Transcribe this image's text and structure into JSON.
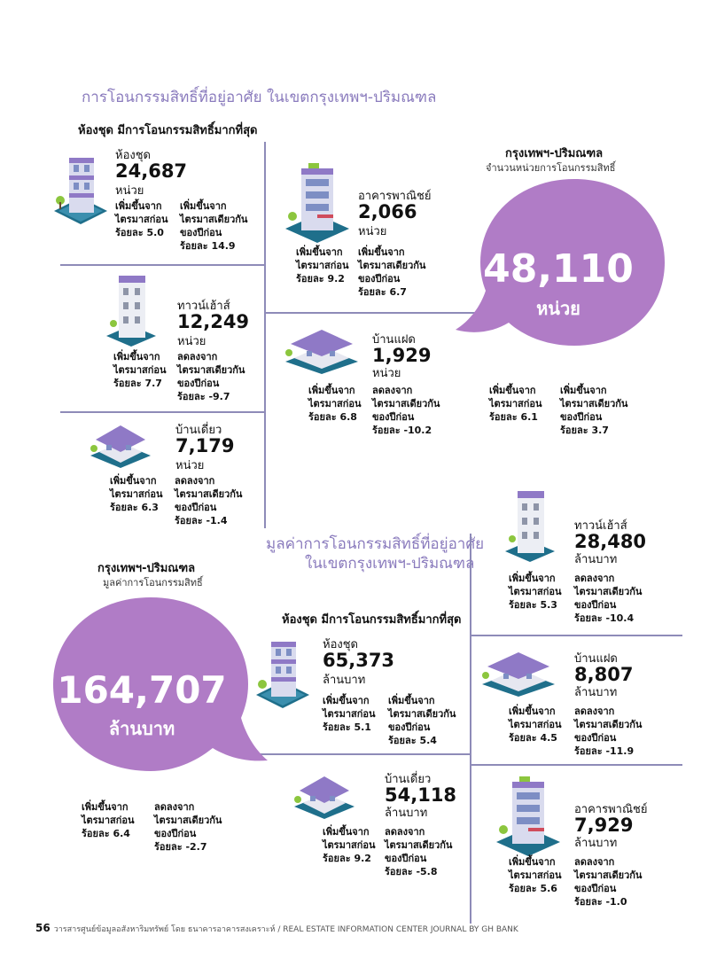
{
  "section1": {
    "title": "การโอนกรรมสิทธิ์ที่อยู่อาศัย ในเขตกรุงเทพฯ-ปริมณฑล",
    "subtitle": "ห้องชุด มีการโอนกรรมสิทธิ์มากที่สุด",
    "total_label": "กรุงเทพฯ-ปริมณฑล",
    "total_desc": "จำนวนหน่วยการโอนกรรมสิทธิ์",
    "total_value": "48,110",
    "total_unit": "หน่วย",
    "total_stat_a": [
      "เพิ่มขึ้นจาก",
      "ไตรมาสก่อน",
      "ร้อยละ  6.1"
    ],
    "total_stat_b": [
      "เพิ่มขึ้นจาก",
      "ไตรมาสเดียวกัน",
      "ของปีก่อน",
      "ร้อยละ 3.7"
    ],
    "items": {
      "condo": {
        "name": "ห้องชุด",
        "value": "24,687",
        "unit": "หน่วย",
        "a": [
          "เพิ่มขึ้นจาก",
          "ไตรมาสก่อน",
          "ร้อยละ 5.0"
        ],
        "b": [
          "เพิ่มขึ้นจาก",
          "ไตรมาสเดียวกัน",
          "ของปีก่อน",
          "ร้อยละ 14.9"
        ]
      },
      "townhouse": {
        "name": "ทาวน์เฮ้าส์",
        "value": "12,249",
        "unit": "หน่วย",
        "a": [
          "เพิ่มขึ้นจาก",
          "ไตรมาสก่อน",
          "ร้อยละ 7.7"
        ],
        "b": [
          "ลดลงจาก",
          "ไตรมาสเดียวกัน",
          "ของปีก่อน",
          "ร้อยละ -9.7"
        ]
      },
      "detached": {
        "name": "บ้านเดี่ยว",
        "value": "7,179",
        "unit": "หน่วย",
        "a": [
          "เพิ่มขึ้นจาก",
          "ไตรมาสก่อน",
          "ร้อยละ 6.3"
        ],
        "b": [
          "ลดลงจาก",
          "ไตรมาสเดียวกัน",
          "ของปีก่อน",
          "ร้อยละ -1.4"
        ]
      },
      "commercial": {
        "name": "อาคารพาณิชย์",
        "value": "2,066",
        "unit": "หน่วย",
        "a": [
          "เพิ่มขึ้นจาก",
          "ไตรมาสก่อน",
          "ร้อยละ 9.2"
        ],
        "b": [
          "เพิ่มขึ้นจาก",
          "ไตรมาสเดียวกัน",
          "ของปีก่อน",
          "ร้อยละ 6.7"
        ]
      },
      "twin": {
        "name": "บ้านแฝด",
        "value": "1,929",
        "unit": "หน่วย",
        "a": [
          "เพิ่มขึ้นจาก",
          "ไตรมาสก่อน",
          "ร้อยละ 6.8"
        ],
        "b": [
          "ลดลงจาก",
          "ไตรมาสเดียวกัน",
          "ของปีก่อน",
          "ร้อยละ -10.2"
        ]
      }
    }
  },
  "section2": {
    "title_line1": "มูลค่าการโอนกรรมสิทธิ์ที่อยู่อาศัย",
    "title_line2": "ในเขตกรุงเทพฯ-ปริมณฑล",
    "subtitle": "ห้องชุด มีการโอนกรรมสิทธิ์มากที่สุด",
    "total_label": "กรุงเทพฯ-ปริมณฑล",
    "total_desc": "มูลค่าการโอนกรรมสิทธิ์",
    "total_value": "164,707",
    "total_unit": "ล้านบาท",
    "total_stat_a": [
      "เพิ่มขึ้นจาก",
      "ไตรมาสก่อน",
      "ร้อยละ  6.4"
    ],
    "total_stat_b": [
      "ลดลงจาก",
      "ไตรมาสเดียวกัน",
      "ของปีก่อน",
      "ร้อยละ -2.7"
    ],
    "items": {
      "condo": {
        "name": "ห้องชุด",
        "value": "65,373",
        "unit": "ล้านบาท",
        "a": [
          "เพิ่มขึ้นจาก",
          "ไตรมาสก่อน",
          "ร้อยละ 5.1"
        ],
        "b": [
          "เพิ่มขึ้นจาก",
          "ไตรมาสเดียวกัน",
          "ของปีก่อน",
          "ร้อยละ 5.4"
        ]
      },
      "detached": {
        "name": "บ้านเดี่ยว",
        "value": "54,118",
        "unit": "ล้านบาท",
        "a": [
          "เพิ่มขึ้นจาก",
          "ไตรมาสก่อน",
          "ร้อยละ 9.2"
        ],
        "b": [
          "ลดลงจาก",
          "ไตรมาสเดียวกัน",
          "ของปีก่อน",
          "ร้อยละ -5.8"
        ]
      },
      "townhouse": {
        "name": "ทาวน์เฮ้าส์",
        "value": "28,480",
        "unit": "ล้านบาท",
        "a": [
          "เพิ่มขึ้นจาก",
          "ไตรมาสก่อน",
          "ร้อยละ 5.3"
        ],
        "b": [
          "ลดลงจาก",
          "ไตรมาสเดียวกัน",
          "ของปีก่อน",
          "ร้อยละ -10.4"
        ]
      },
      "twin": {
        "name": "บ้านแฝด",
        "value": "8,807",
        "unit": "ล้านบาท",
        "a": [
          "เพิ่มขึ้นจาก",
          "ไตรมาสก่อน",
          "ร้อยละ 4.5"
        ],
        "b": [
          "ลดลงจาก",
          "ไตรมาสเดียวกัน",
          "ของปีก่อน",
          "ร้อยละ -11.9"
        ]
      },
      "commercial": {
        "name": "อาคารพาณิชย์",
        "value": "7,929",
        "unit": "ล้านบาท",
        "a": [
          "เพิ่มขึ้นจาก",
          "ไตรมาสก่อน",
          "ร้อยละ 5.6"
        ],
        "b": [
          "ลดลงจาก",
          "ไตรมาสเดียวกัน",
          "ของปีก่อน",
          "ร้อยละ -1.0"
        ]
      }
    }
  },
  "footer": {
    "page_number": "56",
    "text": "วารสารศูนย์ข้อมูลอสังหาริมทรัพย์ โดย ธนาคารอาคารสงเคราะห์ / REAL ESTATE INFORMATION CENTER JOURNAL BY GH BANK"
  },
  "colors": {
    "accent_purple": "#b07cc6",
    "title_purple": "#8a7bbd",
    "divider": "#8e8bb8",
    "roof_purple": "#8f79c6",
    "base_teal": "#1f6f8b"
  }
}
